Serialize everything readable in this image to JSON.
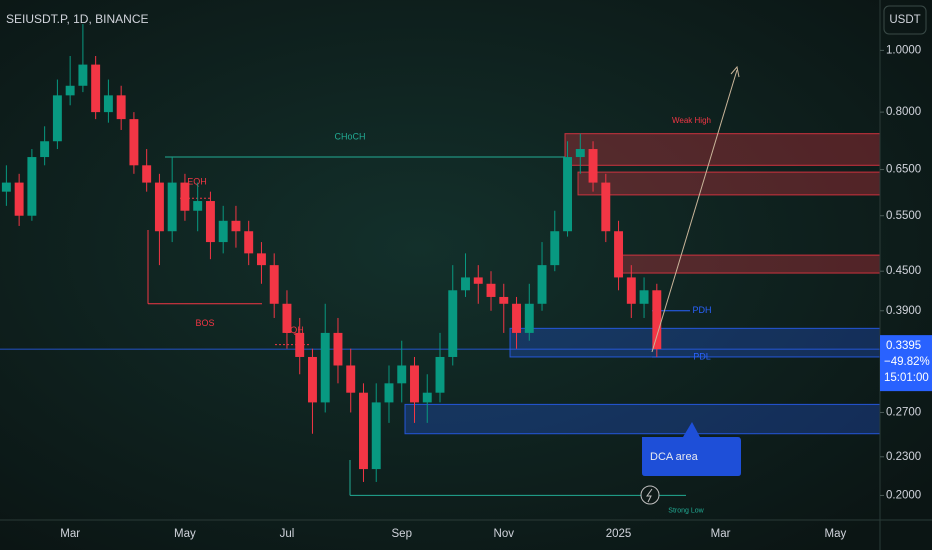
{
  "chart_data": {
    "type": "candlestick",
    "title": "SEIUSDT.P, 1D, BINANCE",
    "currency": "USDT",
    "log_scale": true,
    "up_color": "#089981",
    "down_color": "#f23645",
    "categories": [
      null,
      null,
      null,
      null,
      null,
      "Mar",
      null,
      null,
      null,
      null,
      null,
      null,
      null,
      null,
      "May",
      null,
      null,
      null,
      null,
      null,
      null,
      null,
      "Jul",
      null,
      null,
      null,
      null,
      null,
      null,
      null,
      null,
      "Sep",
      null,
      null,
      null,
      null,
      null,
      null,
      null,
      "Nov",
      null,
      null,
      null,
      null,
      null,
      null,
      null,
      null,
      "2025",
      null,
      null,
      null,
      null,
      null,
      null,
      null,
      "Mar",
      null,
      null,
      null,
      null,
      null,
      null,
      null,
      null,
      "May",
      null,
      null,
      null
    ],
    "open": [
      0.6,
      0.62,
      0.55,
      0.68,
      0.72,
      0.85,
      0.88,
      0.95,
      0.8,
      0.85,
      0.78,
      0.66,
      0.62,
      0.52,
      0.62,
      0.56,
      0.58,
      0.5,
      0.54,
      0.52,
      0.48,
      0.46,
      0.4,
      0.36,
      0.33,
      0.28,
      0.36,
      0.32,
      0.29,
      0.22,
      0.28,
      0.3,
      0.32,
      0.28,
      0.29,
      0.33,
      0.42,
      0.44,
      0.43,
      0.41,
      0.4,
      0.36,
      0.4,
      0.46,
      0.52,
      0.68,
      0.7,
      0.62,
      0.52,
      0.44,
      0.4,
      0.42,
      null,
      null,
      null,
      null,
      null,
      null,
      null,
      null,
      null,
      null,
      null,
      null,
      null,
      null,
      null,
      null,
      null
    ],
    "high": [
      0.66,
      0.64,
      0.7,
      0.76,
      0.9,
      0.98,
      1.1,
      0.98,
      0.9,
      0.88,
      0.8,
      0.7,
      0.64,
      0.68,
      0.64,
      0.62,
      0.6,
      0.57,
      0.57,
      0.54,
      0.5,
      0.48,
      0.42,
      0.38,
      0.34,
      0.4,
      0.38,
      0.34,
      0.3,
      0.3,
      0.32,
      0.35,
      0.33,
      0.31,
      0.36,
      0.46,
      0.48,
      0.46,
      0.45,
      0.43,
      0.41,
      0.43,
      0.5,
      0.56,
      0.72,
      0.74,
      0.72,
      0.64,
      0.54,
      0.46,
      0.44,
      0.43,
      null,
      null,
      null,
      null,
      null,
      null,
      null,
      null,
      null,
      null,
      null,
      null,
      null,
      null,
      null,
      null,
      null
    ],
    "low": [
      0.57,
      0.53,
      0.54,
      0.66,
      0.7,
      0.82,
      0.86,
      0.78,
      0.77,
      0.75,
      0.64,
      0.6,
      0.46,
      0.5,
      0.54,
      0.52,
      0.47,
      0.48,
      0.49,
      0.46,
      0.43,
      0.38,
      0.34,
      0.31,
      0.25,
      0.27,
      0.3,
      0.27,
      0.21,
      0.21,
      0.26,
      0.28,
      0.26,
      0.26,
      0.28,
      0.32,
      0.41,
      0.4,
      0.39,
      0.36,
      0.34,
      0.35,
      0.39,
      0.45,
      0.51,
      0.64,
      0.6,
      0.5,
      0.42,
      0.38,
      0.38,
      0.33,
      null,
      null,
      null,
      null,
      null,
      null,
      null,
      null,
      null,
      null,
      null,
      null,
      null,
      null,
      null,
      null,
      null
    ],
    "close": [
      0.62,
      0.55,
      0.68,
      0.72,
      0.85,
      0.88,
      0.95,
      0.8,
      0.85,
      0.78,
      0.66,
      0.62,
      0.52,
      0.62,
      0.56,
      0.58,
      0.5,
      0.54,
      0.52,
      0.48,
      0.46,
      0.4,
      0.36,
      0.33,
      0.28,
      0.36,
      0.32,
      0.29,
      0.22,
      0.28,
      0.3,
      0.32,
      0.28,
      0.29,
      0.33,
      0.42,
      0.44,
      0.43,
      0.41,
      0.4,
      0.36,
      0.4,
      0.46,
      0.52,
      0.68,
      0.7,
      0.62,
      0.52,
      0.44,
      0.4,
      0.42,
      0.3395,
      null,
      null,
      null,
      null,
      null,
      null,
      null,
      null,
      null,
      null,
      null,
      null,
      null,
      null,
      null,
      null,
      null
    ],
    "ylim": [
      0.183,
      1.2
    ],
    "yticks": [
      {
        "value": 1.0,
        "label": "1.0000"
      },
      {
        "value": 0.8,
        "label": "0.8000"
      },
      {
        "value": 0.65,
        "label": "0.6500"
      },
      {
        "value": 0.55,
        "label": "0.5500"
      },
      {
        "value": 0.45,
        "label": "0.4500"
      },
      {
        "value": 0.39,
        "label": "0.3900"
      },
      {
        "value": 0.27,
        "label": "0.2700"
      },
      {
        "value": 0.23,
        "label": "0.2300"
      },
      {
        "value": 0.2,
        "label": "0.2000"
      }
    ],
    "last_change": "−49.82%",
    "countdown": "15:01:00",
    "zones": [
      {
        "range": [
          0.66,
          0.74
        ],
        "color": "#f23645"
      },
      {
        "range": [
          0.593,
          0.644
        ],
        "color": "#f23645"
      },
      {
        "range": [
          0.447,
          0.477
        ],
        "color": "#f23645"
      },
      {
        "range": [
          0.33,
          0.366
        ],
        "color": "#2962ff"
      },
      {
        "range": [
          0.25,
          0.278
        ],
        "color": "#2962ff"
      }
    ],
    "levels": [
      {
        "text": "CHoCH",
        "value": 0.68,
        "color": "#22ab94"
      },
      {
        "text": "BOS",
        "value": 0.4,
        "color": "#f23645"
      },
      {
        "text": "EQH",
        "value": 0.586,
        "color": "#f23645"
      },
      {
        "text": "EQH",
        "value": 0.345,
        "color": "#f23645"
      },
      {
        "text": "PDH",
        "value": 0.39,
        "color": "#2962ff"
      },
      {
        "text": "PDL",
        "value": 0.33,
        "color": "#2962ff"
      },
      {
        "text": "Strong Low",
        "value": 0.2,
        "color": "#22ab94"
      }
    ],
    "notes": [
      "Weak High",
      "DCA area"
    ]
  }
}
